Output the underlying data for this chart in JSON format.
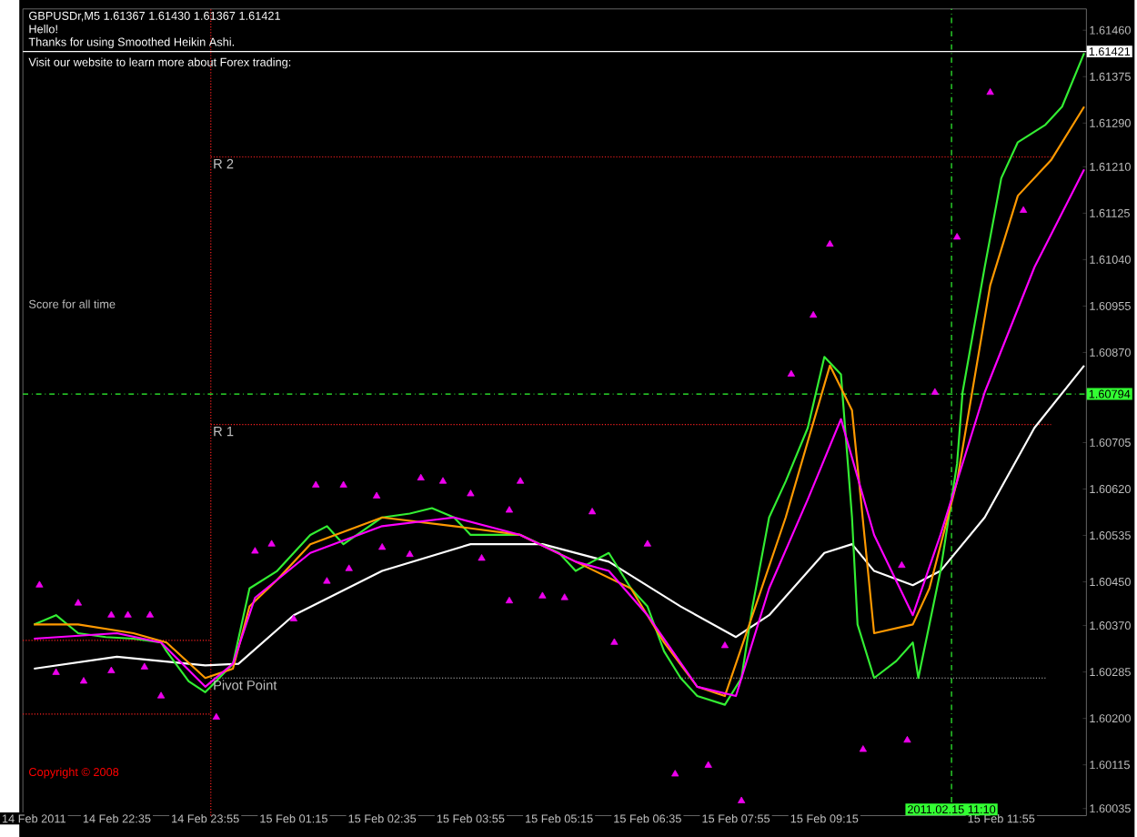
{
  "chart_data": {
    "type": "line",
    "title": "GBPUSDr,M5  1.61367 1.61430 1.61367 1.61421",
    "annotations": [
      "Hello!",
      "Thanks for using Smoothed Heikin Ashi.",
      "Visit our website to learn more about Forex trading:",
      "Score for all time",
      "Copyright © 2008",
      {
        "text": "R 2",
        "x": "2011-02-15T00:00",
        "y": 1.61228
      },
      {
        "text": "R 1",
        "x": "2011-02-15T00:00",
        "y": 1.60738
      },
      {
        "text": "Pivot Point",
        "x": "2011-02-15T00:00",
        "y": 1.60274
      }
    ],
    "xlim": [
      "2011-02-14T21:10",
      "2011-02-15T13:12"
    ],
    "ylim": [
      1.60022,
      1.61499
    ],
    "xticks": [
      {
        "value": "2011-02-14T21:20",
        "label": "14 Feb 2011"
      },
      {
        "value": "2011-02-14T22:35",
        "label": "14 Feb 22:35"
      },
      {
        "value": "2011-02-14T23:55",
        "label": "14 Feb 23:55"
      },
      {
        "value": "2011-02-15T01:15",
        "label": "15 Feb 01:15"
      },
      {
        "value": "2011-02-15T02:35",
        "label": "15 Feb 02:35"
      },
      {
        "value": "2011-02-15T03:55",
        "label": "15 Feb 03:55"
      },
      {
        "value": "2011-02-15T05:15",
        "label": "15 Feb 05:15"
      },
      {
        "value": "2011-02-15T06:35",
        "label": "15 Feb 06:35"
      },
      {
        "value": "2011-02-15T07:55",
        "label": "15 Feb 07:55"
      },
      {
        "value": "2011-02-15T09:15",
        "label": "15 Feb 09:15"
      },
      {
        "value": "2011-02-15T11:55",
        "label": "15 Feb 11:55"
      }
    ],
    "yticks": [
      {
        "value": 1.6146,
        "label": "1.61460"
      },
      1.61375,
      {
        "value": 1.6129,
        "label": "1.61290"
      },
      {
        "value": 1.6121,
        "label": "1.61210"
      },
      1.61125,
      {
        "value": 1.6104,
        "label": "1.61040"
      },
      1.60955,
      {
        "value": 1.6087,
        "label": "1.60870"
      },
      1.60705,
      {
        "value": 1.6062,
        "label": "1.60620"
      },
      1.60535,
      {
        "value": 1.6045,
        "label": "1.60450"
      },
      {
        "value": 1.6037,
        "label": "1.60370"
      },
      1.60285,
      {
        "value": 1.602,
        "label": "1.60200"
      },
      1.60115,
      1.60035
    ],
    "ref_lines": [
      {
        "axis": "y",
        "value": 1.61421,
        "label": "1.61421",
        "color": "#ffffff",
        "line_style": "solid"
      },
      {
        "axis": "y",
        "value": 1.60794,
        "label": "1.60794",
        "color": "#33ff33",
        "line_style": "dashed"
      },
      {
        "axis": "x",
        "value": "2011-02-15T00:00",
        "color": "#ff2020",
        "line_style": "dotted"
      },
      {
        "axis": "x",
        "value": "2011-02-15T11:10",
        "label": "2011.02.15 11:10",
        "color": "#33ff33",
        "line_style": "dashed"
      }
    ],
    "series": [
      {
        "color": "#ff2020",
        "line_style": "dotted",
        "x": [
          "2011-02-14T21:10",
          "2011-02-15T00:00"
        ],
        "values": [
          1.60343,
          1.60343
        ]
      },
      {
        "color": "#ff2020",
        "line_style": "dotted",
        "x": [
          "2011-02-14T21:10",
          "2011-02-15T00:00"
        ],
        "values": [
          1.60208,
          1.60208
        ]
      },
      {
        "color": "#ff2020",
        "line_style": "dotted",
        "x": [
          "2011-02-15T00:00",
          "2011-02-15T12:40"
        ],
        "values": [
          1.61228,
          1.61228
        ]
      },
      {
        "color": "#ff2020",
        "line_style": "dotted",
        "x": [
          "2011-02-15T00:00",
          "2011-02-15T12:40"
        ],
        "values": [
          1.60738,
          1.60738
        ]
      },
      {
        "color": "#c0c0c0",
        "line_style": "dotted",
        "x": [
          "2011-02-15T00:00",
          "2011-02-15T12:35"
        ],
        "values": [
          1.60274,
          1.60274
        ]
      },
      {
        "color": "#ffffff",
        "line_style": "solid",
        "x": [
          "2011-02-14T21:20",
          "2011-02-14T22:35",
          "2011-02-14T23:55",
          "2011-02-15T00:25",
          "2011-02-15T01:15",
          "2011-02-15T02:35",
          "2011-02-15T03:55",
          "2011-02-15T05:00",
          "2011-02-15T06:00",
          "2011-02-15T07:05",
          "2011-02-15T07:55",
          "2011-02-15T08:25",
          "2011-02-15T09:15",
          "2011-02-15T09:40",
          "2011-02-15T10:00",
          "2011-02-15T10:35",
          "2011-02-15T11:00",
          "2011-02-15T11:40",
          "2011-02-15T12:25",
          "2011-02-15T13:10"
        ],
        "values": [
          1.60291,
          1.60313,
          1.60297,
          1.603,
          1.60389,
          1.6047,
          1.60519,
          1.60519,
          1.60487,
          1.60405,
          1.60349,
          1.60389,
          1.60503,
          1.60519,
          1.6047,
          1.60444,
          1.6047,
          1.60568,
          1.60732,
          1.60846
        ]
      },
      {
        "color": "#33ee33",
        "line_style": "solid",
        "x": [
          "2011-02-14T21:20",
          "2011-02-14T21:40",
          "2011-02-14T22:00",
          "2011-02-14T22:25",
          "2011-02-14T22:50",
          "2011-02-14T23:15",
          "2011-02-14T23:20",
          "2011-02-14T23:40",
          "2011-02-14T23:55",
          "2011-02-15T00:00",
          "2011-02-15T00:20",
          "2011-02-15T00:35",
          "2011-02-15T01:00",
          "2011-02-15T01:15",
          "2011-02-15T01:30",
          "2011-02-15T01:45",
          "2011-02-15T02:00",
          "2011-02-15T02:35",
          "2011-02-15T03:00",
          "2011-02-15T03:20",
          "2011-02-15T03:40",
          "2011-02-15T03:55",
          "2011-02-15T04:20",
          "2011-02-15T04:40",
          "2011-02-15T05:15",
          "2011-02-15T05:30",
          "2011-02-15T05:45",
          "2011-02-15T06:00",
          "2011-02-15T06:20",
          "2011-02-15T06:35",
          "2011-02-15T06:50",
          "2011-02-15T07:05",
          "2011-02-15T07:20",
          "2011-02-15T07:45",
          "2011-02-15T08:00",
          "2011-02-15T08:10",
          "2011-02-15T08:25",
          "2011-02-15T08:40",
          "2011-02-15T09:00",
          "2011-02-15T09:15",
          "2011-02-15T09:30",
          "2011-02-15T09:40",
          "2011-02-15T09:45",
          "2011-02-15T10:00",
          "2011-02-15T10:20",
          "2011-02-15T10:35",
          "2011-02-15T10:40",
          "2011-02-15T11:00",
          "2011-02-15T11:15",
          "2011-02-15T11:20",
          "2011-02-15T11:40",
          "2011-02-15T11:55",
          "2011-02-15T12:10",
          "2011-02-15T12:35",
          "2011-02-15T12:50",
          "2011-02-15T13:10"
        ],
        "values": [
          1.60372,
          1.60389,
          1.60356,
          1.60349,
          1.60346,
          1.60339,
          1.60323,
          1.60268,
          1.60248,
          1.60258,
          1.603,
          1.60438,
          1.6047,
          1.60503,
          1.60536,
          1.60552,
          1.60519,
          1.60568,
          1.60575,
          1.60585,
          1.60568,
          1.60536,
          1.60536,
          1.60536,
          1.60503,
          1.6047,
          1.60487,
          1.60503,
          1.60438,
          1.60405,
          1.60323,
          1.60274,
          1.60241,
          1.60225,
          1.60274,
          1.60405,
          1.60568,
          1.60634,
          1.60732,
          1.60862,
          1.6083,
          1.60568,
          1.60372,
          1.60274,
          1.60305,
          1.60339,
          1.60274,
          1.6047,
          1.60666,
          1.60797,
          1.61026,
          1.61189,
          1.61255,
          1.61287,
          1.6132,
          1.61418
        ]
      },
      {
        "color": "#ff9900",
        "line_style": "solid",
        "x": [
          "2011-02-14T21:20",
          "2011-02-14T22:00",
          "2011-02-14T22:50",
          "2011-02-14T23:20",
          "2011-02-14T23:55",
          "2011-02-15T00:20",
          "2011-02-15T00:35",
          "2011-02-15T01:00",
          "2011-02-15T01:30",
          "2011-02-15T02:35",
          "2011-02-15T03:40",
          "2011-02-15T04:40",
          "2011-02-15T05:30",
          "2011-02-15T06:20",
          "2011-02-15T06:50",
          "2011-02-15T07:20",
          "2011-02-15T07:45",
          "2011-02-15T08:10",
          "2011-02-15T08:40",
          "2011-02-15T09:20",
          "2011-02-15T09:40",
          "2011-02-15T10:00",
          "2011-02-15T10:35",
          "2011-02-15T10:50",
          "2011-02-15T11:15",
          "2011-02-15T11:45",
          "2011-02-15T12:10",
          "2011-02-15T12:40",
          "2011-02-15T13:10"
        ],
        "values": [
          1.60372,
          1.60372,
          1.60356,
          1.60339,
          1.60274,
          1.60291,
          1.60405,
          1.60454,
          1.60519,
          1.60568,
          1.60552,
          1.60536,
          1.60487,
          1.60438,
          1.60339,
          1.60258,
          1.60241,
          1.60389,
          1.60568,
          1.60846,
          1.60764,
          1.60356,
          1.60372,
          1.60438,
          1.60634,
          1.60993,
          1.61157,
          1.61222,
          1.6132
        ]
      },
      {
        "color": "#ff00ff",
        "line_style": "solid",
        "x": [
          "2011-02-14T21:20",
          "2011-02-14T22:35",
          "2011-02-14T23:15",
          "2011-02-14T23:55",
          "2011-02-15T00:20",
          "2011-02-15T00:40",
          "2011-02-15T01:30",
          "2011-02-15T02:35",
          "2011-02-15T03:40",
          "2011-02-15T04:40",
          "2011-02-15T05:30",
          "2011-02-15T06:00",
          "2011-02-15T06:35",
          "2011-02-15T07:20",
          "2011-02-15T07:55",
          "2011-02-15T08:25",
          "2011-02-15T09:00",
          "2011-02-15T09:30",
          "2011-02-15T10:00",
          "2011-02-15T10:35",
          "2011-02-15T11:00",
          "2011-02-15T11:40",
          "2011-02-15T12:25",
          "2011-02-15T13:10"
        ],
        "values": [
          1.60346,
          1.60356,
          1.60339,
          1.60258,
          1.603,
          1.60421,
          1.60503,
          1.60552,
          1.60568,
          1.60536,
          1.60487,
          1.6047,
          1.60389,
          1.60258,
          1.60241,
          1.60438,
          1.60601,
          1.60748,
          1.60536,
          1.60389,
          1.60536,
          1.60797,
          1.61026,
          1.61205
        ]
      },
      {
        "type": "scatter",
        "color": "#ee00ee",
        "marker": "triangle",
        "x": [
          "2011-02-14T21:25",
          "2011-02-14T22:00",
          "2011-02-14T22:30",
          "2011-02-14T22:45",
          "2011-02-14T23:05",
          "2011-02-15T00:40",
          "2011-02-15T00:55",
          "2011-02-15T01:35",
          "2011-02-15T02:00",
          "2011-02-15T02:30",
          "2011-02-15T03:10",
          "2011-02-15T03:30",
          "2011-02-15T03:55",
          "2011-02-15T04:30",
          "2011-02-15T04:40",
          "2011-02-15T05:45",
          "2011-02-15T06:35",
          "2011-02-15T07:45",
          "2011-02-15T08:45",
          "2011-02-15T09:05",
          "2011-02-15T09:20",
          "2011-02-15T10:25",
          "2011-02-15T10:55",
          "2011-02-15T11:15",
          "2011-02-15T11:45"
        ],
        "values": [
          1.60444,
          1.60411,
          1.60389,
          1.60389,
          1.60389,
          1.60506,
          1.60519,
          1.60627,
          1.60627,
          1.60607,
          1.6064,
          1.60634,
          1.60611,
          1.60581,
          1.60634,
          1.60578,
          1.60519,
          1.60333,
          1.6083,
          1.60938,
          1.61068,
          1.6048,
          1.60797,
          1.61081,
          1.61346
        ]
      },
      {
        "type": "scatter",
        "color": "#ee00ee",
        "marker": "triangle",
        "x": [
          "2011-02-14T21:40",
          "2011-02-14T22:05",
          "2011-02-14T22:30",
          "2011-02-14T23:00",
          "2011-02-14T23:15",
          "2011-02-15T00:05",
          "2011-02-15T01:15",
          "2011-02-15T01:45",
          "2011-02-15T02:05",
          "2011-02-15T02:35",
          "2011-02-15T03:00",
          "2011-02-15T04:05",
          "2011-02-15T04:30",
          "2011-02-15T05:00",
          "2011-02-15T05:20",
          "2011-02-15T06:05",
          "2011-02-15T07:00",
          "2011-02-15T07:30",
          "2011-02-15T08:00",
          "2011-02-15T09:50",
          "2011-02-15T10:30",
          "2011-02-15T12:15"
        ],
        "values": [
          1.60284,
          1.60268,
          1.60287,
          1.60294,
          1.60241,
          1.60202,
          1.60382,
          1.60451,
          1.60474,
          1.60513,
          1.605,
          1.60493,
          1.60415,
          1.60424,
          1.60421,
          1.60339,
          1.60098,
          1.60114,
          1.60049,
          1.60143,
          1.6016,
          1.6113
        ]
      }
    ]
  }
}
